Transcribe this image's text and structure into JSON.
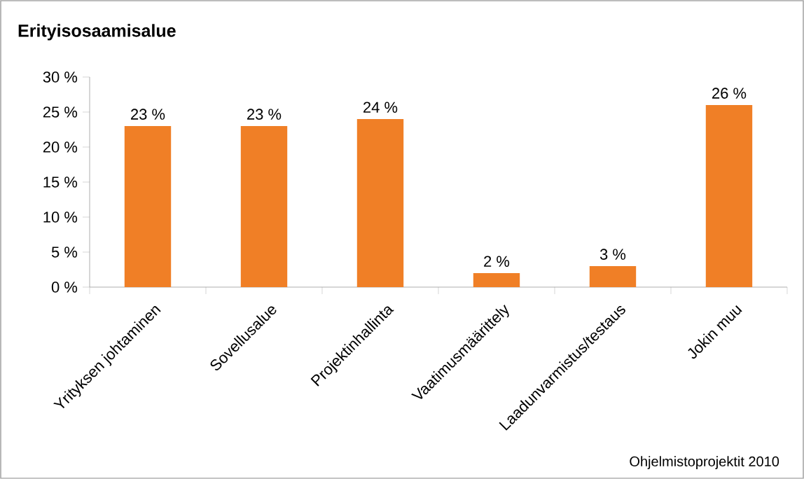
{
  "chart_data": {
    "type": "bar",
    "title": "Erityisosaamisalue",
    "categories": [
      "Yrityksen johtaminen",
      "Sovellusalue",
      "Projektinhallinta",
      "Vaatimusmäärittely",
      "Laadunvarmistus/testaus",
      "Jokin muu"
    ],
    "values": [
      23,
      23,
      24,
      2,
      3,
      26
    ],
    "value_labels": [
      "23 %",
      "23 %",
      "24 %",
      "2 %",
      "3 %",
      "26 %"
    ],
    "color": "#f07f26",
    "ylim": [
      0,
      30
    ],
    "yticks": [
      {
        "value": 0,
        "label": "0 %"
      },
      {
        "value": 5,
        "label": "5 %"
      },
      {
        "value": 10,
        "label": "10 %"
      },
      {
        "value": 15,
        "label": "15 %"
      },
      {
        "value": 20,
        "label": "20 %"
      },
      {
        "value": 25,
        "label": "25 %"
      },
      {
        "value": 30,
        "label": "30 %"
      }
    ],
    "annotations": [
      "Ohjelmistoprojektit 2010"
    ]
  }
}
